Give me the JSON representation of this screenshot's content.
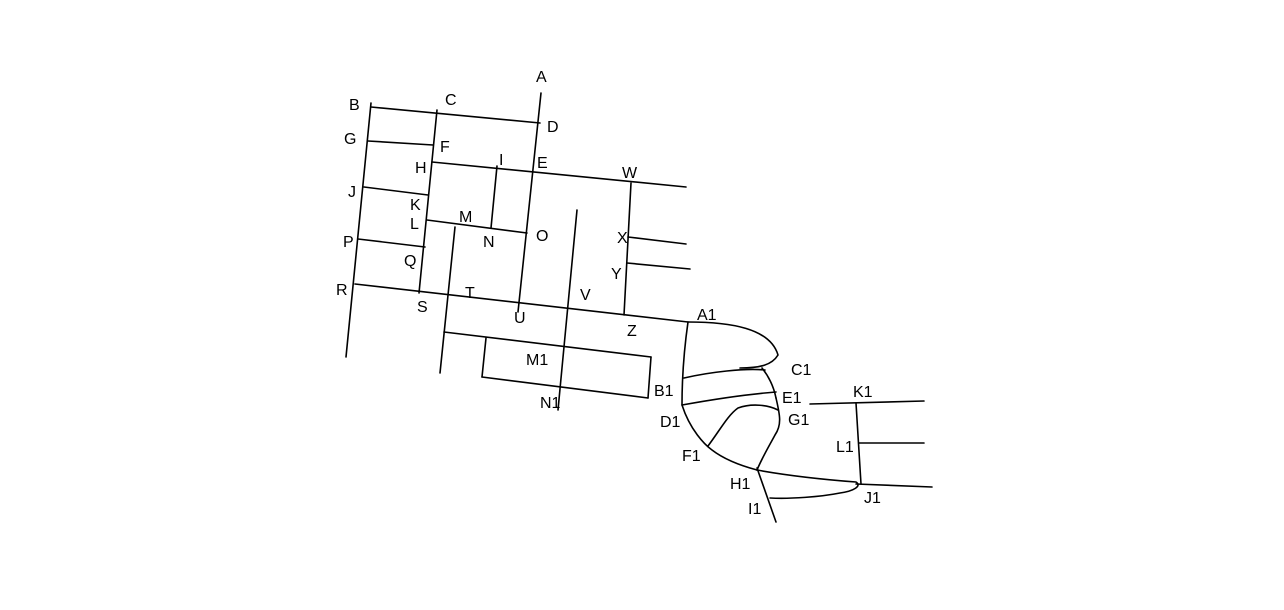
{
  "labels": {
    "A": "A",
    "B": "B",
    "C": "C",
    "D": "D",
    "E": "E",
    "F": "F",
    "G": "G",
    "H": "H",
    "I": "I",
    "J": "J",
    "K": "K",
    "L": "L",
    "M": "M",
    "N": "N",
    "O": "O",
    "P": "P",
    "Q": "Q",
    "R": "R",
    "S": "S",
    "T": "T",
    "U": "U",
    "V": "V",
    "W": "W",
    "X": "X",
    "Y": "Y",
    "Z": "Z",
    "A1": "A1",
    "B1": "B1",
    "C1": "C1",
    "D1": "D1",
    "E1": "E1",
    "F1": "F1",
    "G1": "G1",
    "H1": "H1",
    "I1": "I1",
    "J1": "J1",
    "K1": "K1",
    "L1": "L1",
    "M1": "M1",
    "N1": "N1"
  },
  "colors": {
    "line": "#000000",
    "background": "#ffffff"
  }
}
